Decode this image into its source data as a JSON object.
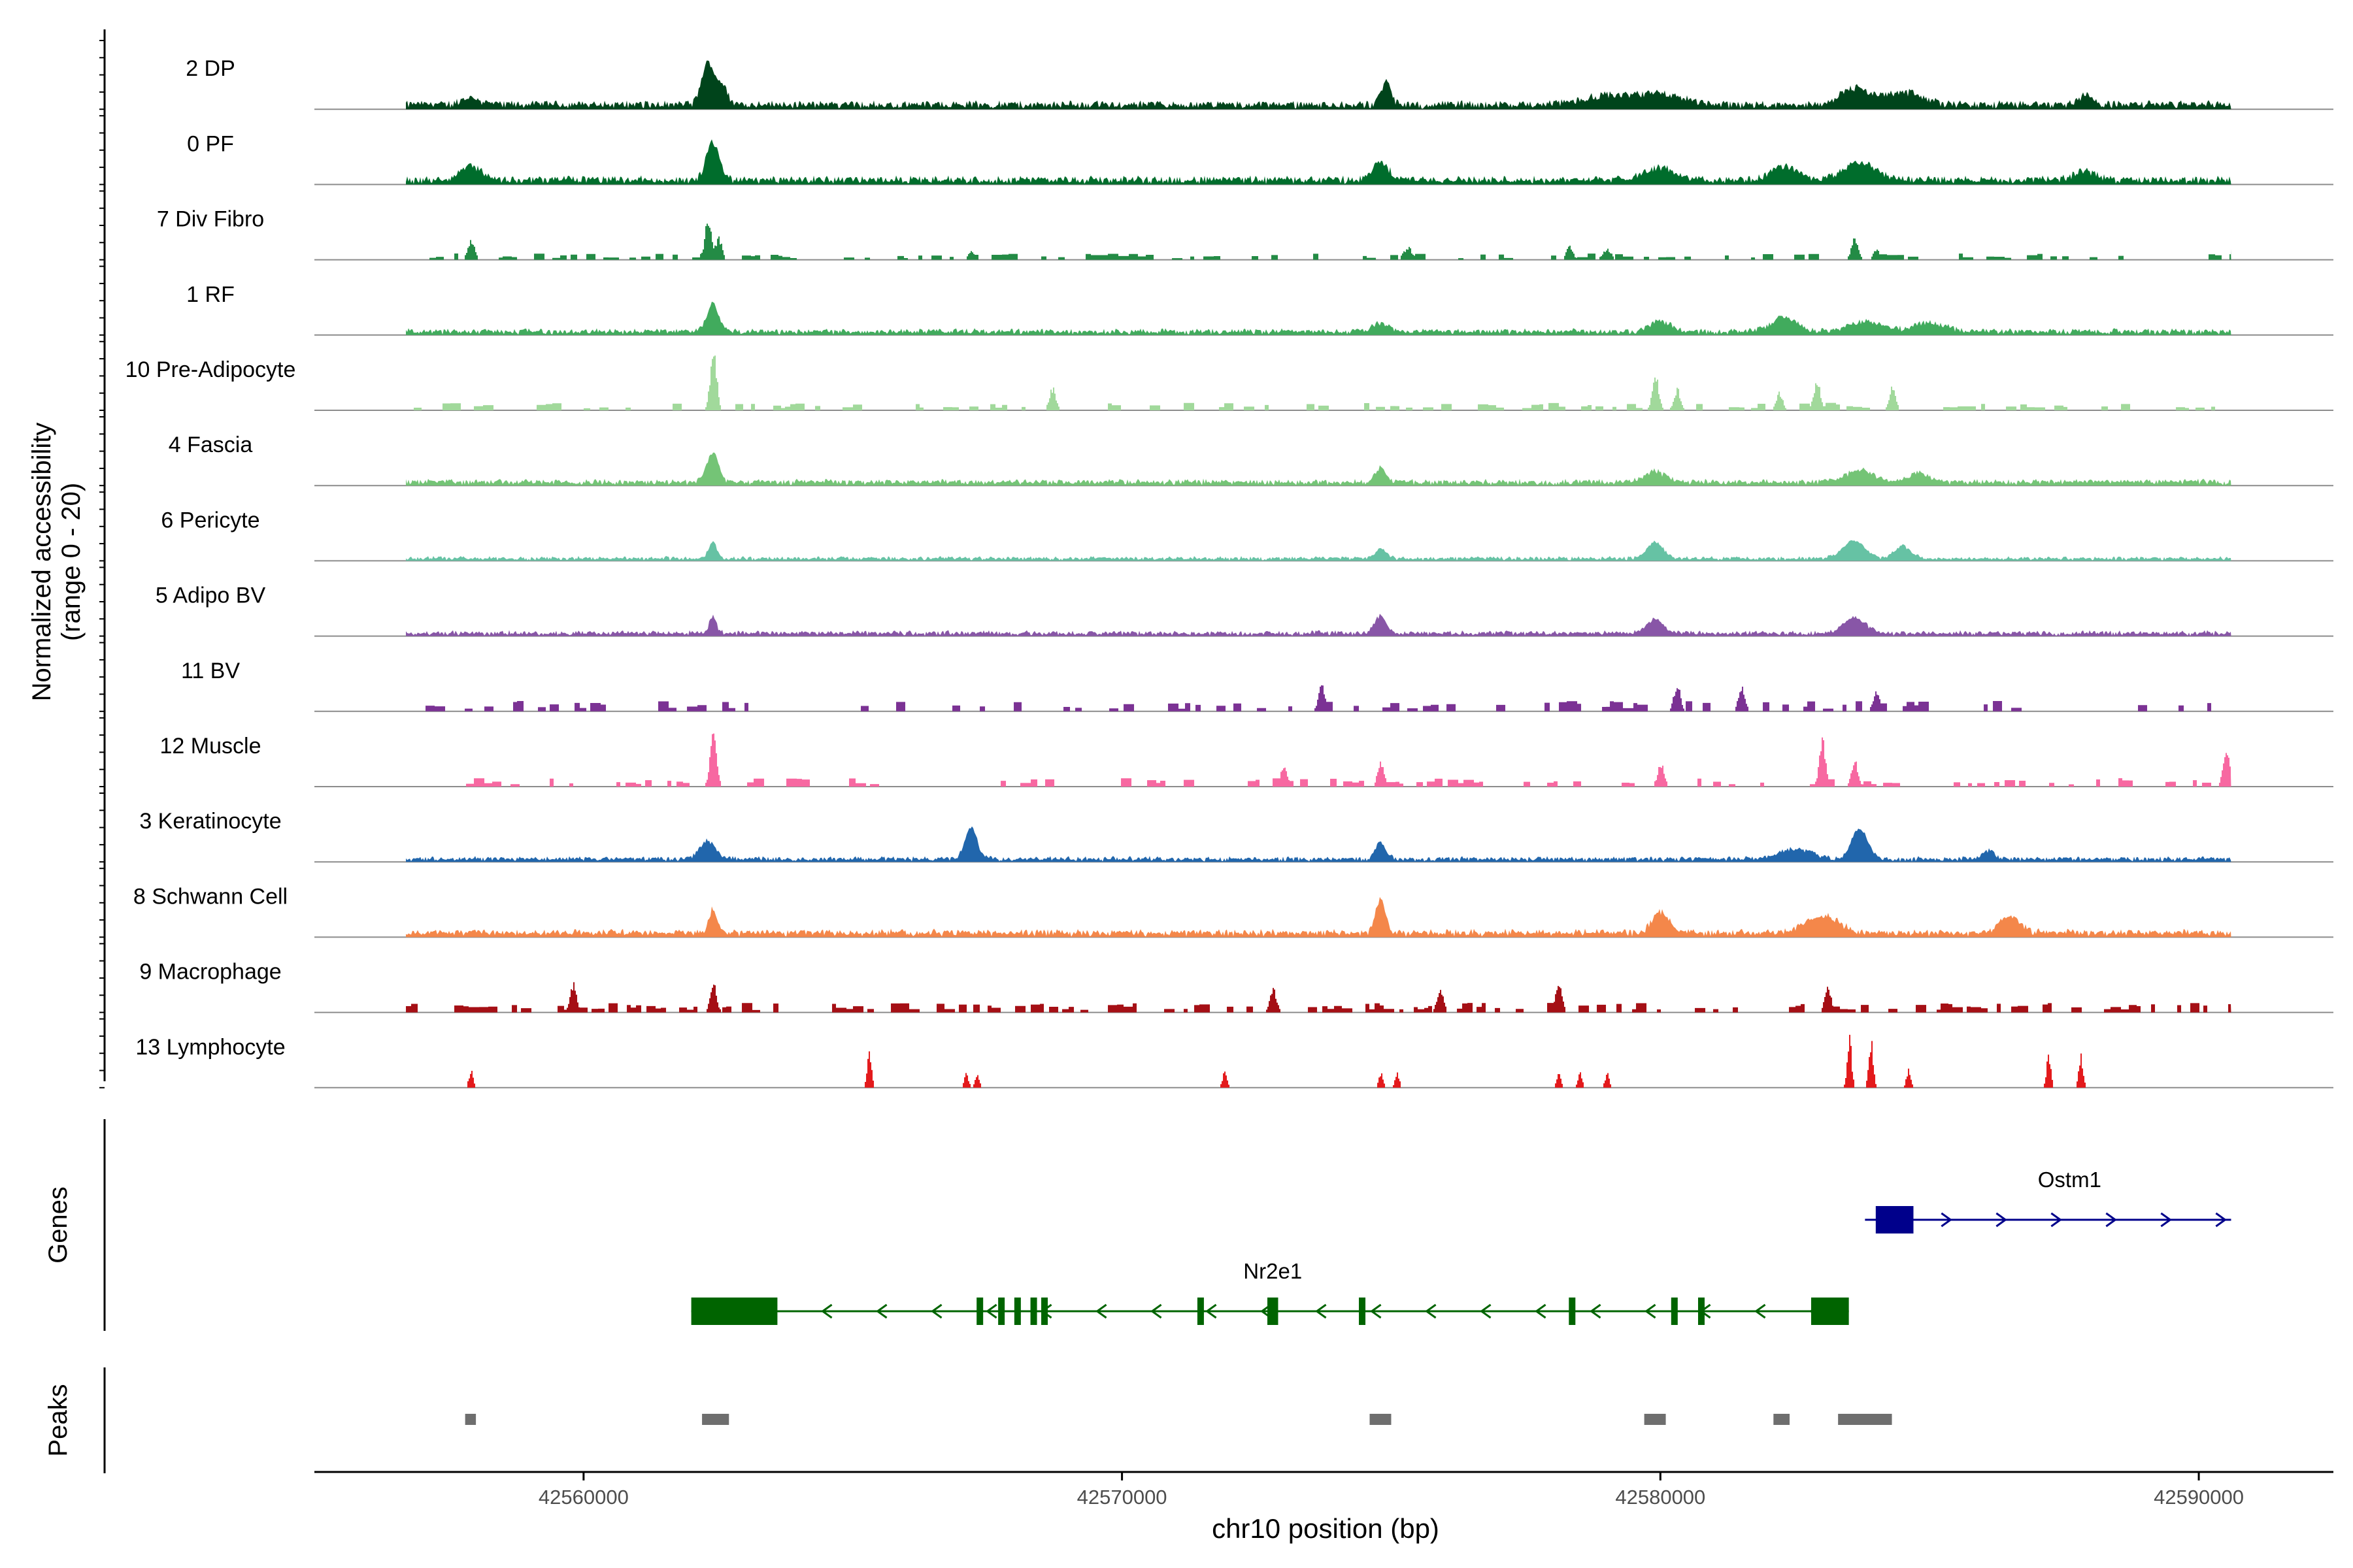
{
  "chart_data": {
    "type": "coverage-track",
    "region": {
      "chrom": "chr10",
      "start": 42555000,
      "end": 42592500
    },
    "y_axis_label_line1": "Normalized accessibility",
    "y_axis_label_line2": "(range 0 - 20)",
    "y_range": [
      0,
      20
    ],
    "x_label": "chr10 position (bp)",
    "x_ticks": [
      {
        "value": 42560000,
        "label": "42560000"
      },
      {
        "value": 42570000,
        "label": "42570000"
      },
      {
        "value": 42580000,
        "label": "42580000"
      },
      {
        "value": 42590000,
        "label": "42590000"
      }
    ],
    "data_extent": {
      "start": 42556700,
      "end": 42590600
    },
    "tracks": [
      {
        "name": "2 DP",
        "color": "#00441b",
        "style": "smooth",
        "base": 0.35,
        "peaks": [
          [
            42557900,
            0.35,
            180
          ],
          [
            42562300,
            2.2,
            110
          ],
          [
            42562550,
            1.1,
            120
          ],
          [
            42574900,
            1.3,
            90
          ],
          [
            42580000,
            0.6,
            400
          ],
          [
            42583600,
            0.9,
            260
          ],
          [
            42584500,
            0.7,
            350
          ],
          [
            42587900,
            0.6,
            120
          ],
          [
            42579000,
            0.5,
            500
          ]
        ]
      },
      {
        "name": "0 PF",
        "color": "#006d2c",
        "style": "smooth",
        "base": 0.35,
        "peaks": [
          [
            42557900,
            0.8,
            200
          ],
          [
            42562400,
            2.1,
            120
          ],
          [
            42574800,
            1.0,
            150
          ],
          [
            42580000,
            0.7,
            300
          ],
          [
            42582300,
            0.8,
            250
          ],
          [
            42583700,
            1.0,
            300
          ],
          [
            42587900,
            0.5,
            200
          ]
        ]
      },
      {
        "name": "7 Div Fibro",
        "color": "#238b45",
        "style": "blocky",
        "base": 0.0,
        "peaks": [
          [
            42557900,
            1.2,
            60
          ],
          [
            42562300,
            2.3,
            60
          ],
          [
            42562500,
            1.2,
            60
          ],
          [
            42567200,
            0.5,
            60
          ],
          [
            42575300,
            0.7,
            80
          ],
          [
            42578300,
            0.8,
            60
          ],
          [
            42579000,
            0.6,
            80
          ],
          [
            42583600,
            1.3,
            60
          ],
          [
            42584000,
            0.6,
            60
          ],
          [
            42590600,
            0.6,
            30
          ]
        ],
        "noise": 0.3,
        "sparse": 0.35
      },
      {
        "name": "1 RF",
        "color": "#41ab5d",
        "style": "smooth",
        "base": 0.25,
        "peaks": [
          [
            42562400,
            1.6,
            110
          ],
          [
            42574800,
            0.5,
            150
          ],
          [
            42580000,
            0.6,
            200
          ],
          [
            42582300,
            0.8,
            250
          ],
          [
            42583800,
            0.6,
            300
          ],
          [
            42585000,
            0.5,
            300
          ]
        ]
      },
      {
        "name": "10 Pre-Adipocyte",
        "color": "#a1d99b",
        "style": "blocky",
        "base": 0.0,
        "peaks": [
          [
            42562400,
            3.5,
            60
          ],
          [
            42568700,
            1.3,
            60
          ],
          [
            42579900,
            1.9,
            60
          ],
          [
            42580300,
            1.2,
            60
          ],
          [
            42582900,
            1.8,
            60
          ],
          [
            42584300,
            1.3,
            60
          ],
          [
            42582200,
            1.0,
            60
          ]
        ],
        "noise": 0.35,
        "sparse": 0.35
      },
      {
        "name": "4 Fascia",
        "color": "#74c476",
        "style": "smooth",
        "base": 0.25,
        "peaks": [
          [
            42562400,
            1.7,
            110
          ],
          [
            42574800,
            0.8,
            100
          ],
          [
            42579900,
            0.6,
            200
          ],
          [
            42583700,
            0.7,
            250
          ],
          [
            42584800,
            0.5,
            200
          ]
        ]
      },
      {
        "name": "6 Pericyte",
        "color": "#66c2a4",
        "style": "smooth",
        "base": 0.15,
        "peaks": [
          [
            42562400,
            0.9,
            80
          ],
          [
            42574800,
            0.6,
            100
          ],
          [
            42579900,
            0.9,
            150
          ],
          [
            42583600,
            1.0,
            200
          ],
          [
            42584500,
            0.7,
            150
          ]
        ]
      },
      {
        "name": "5 Adipo BV",
        "color": "#8856a7",
        "style": "smooth",
        "base": 0.2,
        "peaks": [
          [
            42562400,
            0.9,
            70
          ],
          [
            42574800,
            1.0,
            100
          ],
          [
            42579900,
            0.8,
            150
          ],
          [
            42583600,
            0.9,
            200
          ]
        ]
      },
      {
        "name": "11 BV",
        "color": "#7b3294",
        "style": "blocky",
        "base": 0.0,
        "peaks": [
          [
            42573700,
            1.6,
            60
          ],
          [
            42580300,
            1.6,
            60
          ],
          [
            42581500,
            1.4,
            60
          ],
          [
            42584000,
            1.2,
            60
          ]
        ],
        "noise": 0.5,
        "sparse": 0.25
      },
      {
        "name": "12 Muscle",
        "color": "#f768a1",
        "style": "blocky",
        "base": 0.0,
        "peaks": [
          [
            42562400,
            3.2,
            60
          ],
          [
            42583000,
            2.6,
            60
          ],
          [
            42590500,
            2.3,
            60
          ],
          [
            42573000,
            1.3,
            60
          ],
          [
            42574800,
            1.5,
            60
          ],
          [
            42580000,
            1.3,
            60
          ],
          [
            42583600,
            1.5,
            60
          ]
        ],
        "noise": 0.4,
        "sparse": 0.3
      },
      {
        "name": "3 Keratinocyte",
        "color": "#2166ac",
        "style": "smooth",
        "base": 0.2,
        "peaks": [
          [
            42562300,
            1.0,
            150
          ],
          [
            42567200,
            1.8,
            110
          ],
          [
            42574800,
            0.9,
            100
          ],
          [
            42583700,
            1.7,
            150
          ],
          [
            42582500,
            0.6,
            300
          ],
          [
            42586100,
            0.5,
            100
          ]
        ]
      },
      {
        "name": "8 Schwann Cell",
        "color": "#f4874a",
        "style": "smooth",
        "base": 0.25,
        "peaks": [
          [
            42562400,
            1.3,
            70
          ],
          [
            42574800,
            1.9,
            90
          ],
          [
            42580000,
            1.2,
            150
          ],
          [
            42583000,
            1.0,
            300
          ],
          [
            42586500,
            0.9,
            200
          ]
        ],
        "noise": 0.5
      },
      {
        "name": "9 Macrophage",
        "color": "#a50f15",
        "style": "blocky",
        "base": 0.0,
        "peaks": [
          [
            42559800,
            1.6,
            60
          ],
          [
            42562400,
            1.6,
            60
          ],
          [
            42578100,
            1.8,
            60
          ],
          [
            42583100,
            1.5,
            60
          ],
          [
            42572800,
            1.3,
            60
          ],
          [
            42575900,
            1.3,
            60
          ]
        ],
        "noise": 0.45,
        "sparse": 0.5
      },
      {
        "name": "13 Lymphocyte",
        "color": "#e31a1c",
        "style": "blocky",
        "base": 0.0,
        "peaks": [
          [
            42557900,
            1.0,
            40
          ],
          [
            42565300,
            2.0,
            40
          ],
          [
            42583500,
            2.9,
            40
          ],
          [
            42583900,
            2.7,
            40
          ],
          [
            42584600,
            1.0,
            40
          ],
          [
            42587200,
            1.9,
            40
          ],
          [
            42587800,
            1.8,
            40
          ],
          [
            42567100,
            0.8,
            40
          ],
          [
            42567300,
            0.8,
            40
          ],
          [
            42571900,
            1.0,
            40
          ],
          [
            42574800,
            0.8,
            40
          ],
          [
            42575100,
            0.8,
            40
          ],
          [
            42578100,
            0.8,
            40
          ],
          [
            42578500,
            0.8,
            40
          ],
          [
            42579000,
            0.8,
            40
          ]
        ],
        "noise": 0.0,
        "sparse": 0.0
      }
    ],
    "genes_label": "Genes",
    "genes": [
      {
        "name": "Ostm1",
        "strand": "+",
        "start": 42583800,
        "end": 42590600,
        "color": "#00008b",
        "row": 0,
        "exons": [
          [
            42584000,
            42584700
          ]
        ]
      },
      {
        "name": "Nr2e1",
        "strand": "-",
        "start": 42562000,
        "end": 42583500,
        "color": "#006400",
        "row": 1,
        "exons": [
          [
            42562000,
            42563600
          ],
          [
            42567300,
            42567400
          ],
          [
            42567700,
            42567800
          ],
          [
            42568000,
            42568100
          ],
          [
            42568300,
            42568400
          ],
          [
            42568500,
            42568600
          ],
          [
            42571400,
            42571500
          ],
          [
            42572700,
            42572900
          ],
          [
            42574400,
            42574500
          ],
          [
            42578300,
            42578400
          ],
          [
            42580200,
            42580300
          ],
          [
            42580700,
            42580800
          ],
          [
            42582800,
            42583500
          ]
        ]
      }
    ],
    "peaks_label": "Peaks",
    "peak_regions": [
      [
        42557800,
        42558000
      ],
      [
        42562200,
        42562700
      ],
      [
        42574600,
        42575000
      ],
      [
        42579700,
        42580100
      ],
      [
        42582100,
        42582400
      ],
      [
        42583300,
        42584300
      ]
    ]
  }
}
